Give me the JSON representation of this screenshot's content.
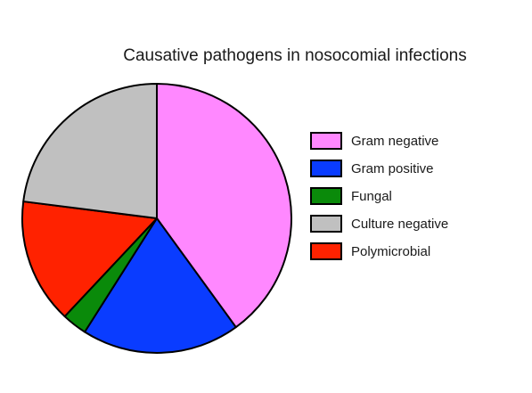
{
  "chart_data": {
    "type": "pie",
    "title": "Causative pathogens in nosocomial infections",
    "legend_position": "right",
    "slices": [
      {
        "label": "Gram negative",
        "value": 40,
        "color": "#ff88ff"
      },
      {
        "label": "Gram positive",
        "value": 19,
        "color": "#0a3cff"
      },
      {
        "label": "Fungal",
        "value": 3,
        "color": "#0a8a0a"
      },
      {
        "label": "Polymicrobial",
        "value": 15,
        "color": "#ff2200"
      },
      {
        "label": "Culture negative",
        "value": 23,
        "color": "#c0c0c0"
      }
    ],
    "legend": [
      {
        "label": "Gram negative",
        "color": "#ff88ff"
      },
      {
        "label": "Gram positive",
        "color": "#0a3cff"
      },
      {
        "label": "Fungal",
        "color": "#0a8a0a"
      },
      {
        "label": "Culture negative",
        "color": "#c0c0c0"
      },
      {
        "label": "Polymicrobial",
        "color": "#ff2200"
      }
    ]
  }
}
